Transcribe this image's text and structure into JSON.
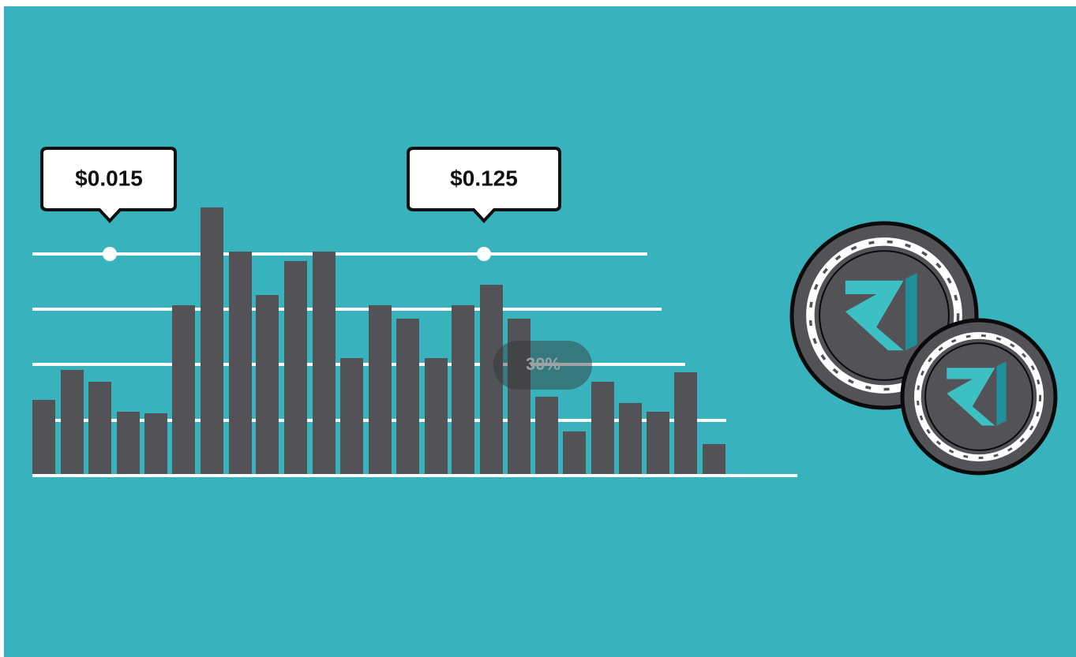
{
  "callouts": [
    {
      "label": "$0.015"
    },
    {
      "label": "$0.125"
    }
  ],
  "zoom_indicator": "30%"
}
